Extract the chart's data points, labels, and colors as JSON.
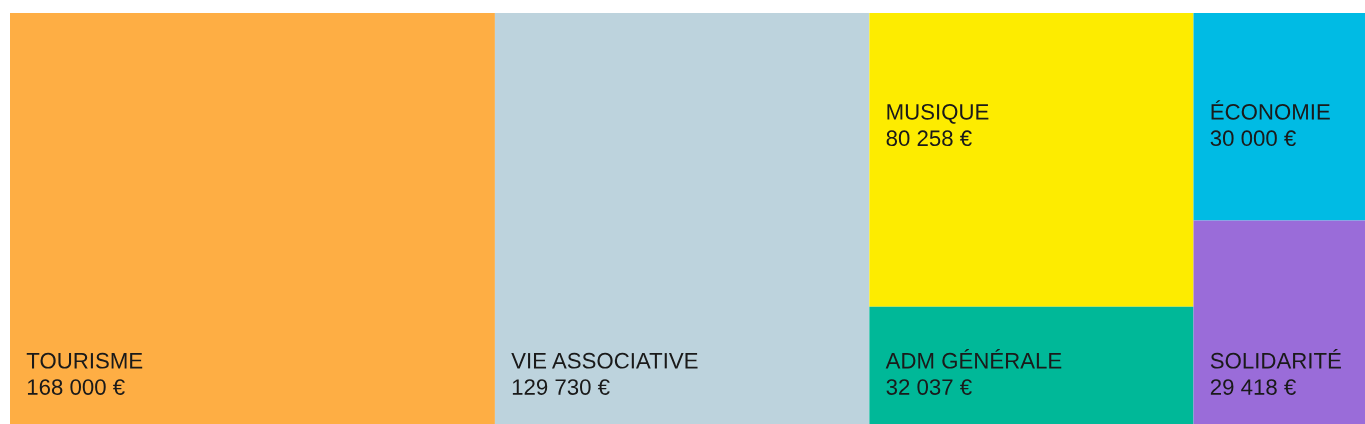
{
  "chart_data": {
    "type": "other",
    "categories": [
      "TOURISME",
      "VIE ASSOCIATIVE",
      "MUSIQUE",
      "ADM GÉNÉRALE",
      "ÉCONOMIE",
      "SOLIDARITÉ"
    ],
    "values": [
      168000,
      129730,
      80258,
      32037,
      30000,
      29418
    ],
    "value_labels": [
      "168 000 €",
      "129 730 €",
      "80 258 €",
      "32 037 €",
      "30 000 €",
      "29 418 €"
    ],
    "colors": [
      "#feae44",
      "#bdd3dd",
      "#fdec00",
      "#00b898",
      "#00bbe4",
      "#9a6cd9"
    ]
  }
}
